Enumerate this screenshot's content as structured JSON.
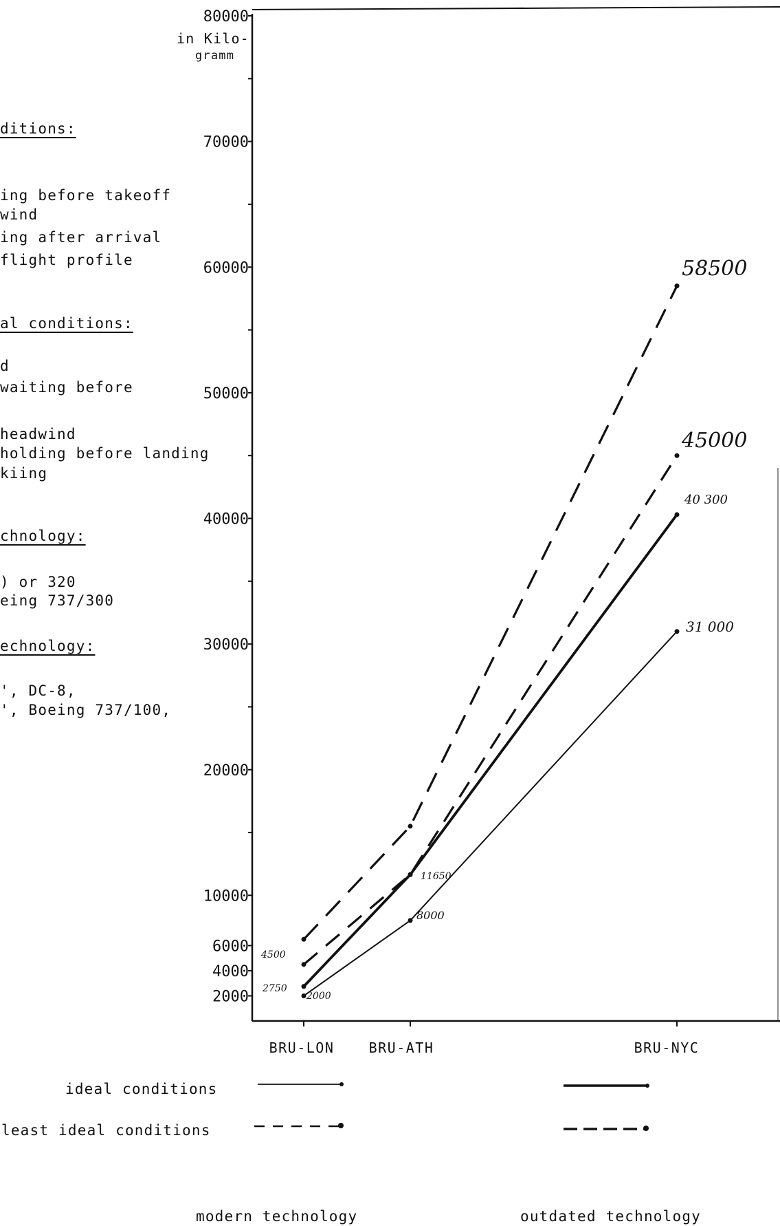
{
  "unit_label": [
    "in Kilo-",
    "gramm"
  ],
  "left_text": [
    {
      "text": "ditions:",
      "underline": true
    },
    {
      "text": "ing before takeoff",
      "underline": false
    },
    {
      "text": "wind",
      "underline": false
    },
    {
      "text": "ing after arrival",
      "underline": false
    },
    {
      "text": " flight profile",
      "underline": false
    },
    {
      "text": "al conditions:",
      "underline": true
    },
    {
      "text": "d",
      "underline": false
    },
    {
      "text": " waiting before",
      "underline": false
    },
    {
      "text": "headwind",
      "underline": false
    },
    {
      "text": " holding before landing",
      "underline": false
    },
    {
      "text": "kiing",
      "underline": false
    },
    {
      "text": "chnology:",
      "underline": true
    },
    {
      "text": ") or 320",
      "underline": false
    },
    {
      "text": "eing 737/300",
      "underline": false
    },
    {
      "text": "echnology:",
      "underline": true
    },
    {
      "text": "', DC-8,",
      "underline": false
    },
    {
      "text": "', Boeing 737/100,",
      "underline": false
    }
  ],
  "legend": {
    "ideal_label": "ideal conditions",
    "least_label": "least ideal conditions",
    "modern_label": "modern technology",
    "outdated_label": "outdated technology"
  },
  "chart_data": {
    "type": "line",
    "categories": [
      "BRU-LON",
      "BRU-ATH",
      "BRU-NYC"
    ],
    "y_tick_labels": [
      "80000",
      "70000",
      "60000",
      "50000",
      "40000",
      "30000",
      "20000",
      "10000",
      "6000",
      "4000",
      "2000"
    ],
    "y_ticks": [
      80000,
      70000,
      60000,
      50000,
      40000,
      30000,
      20000,
      10000,
      6000,
      4000,
      2000
    ],
    "ylim": [
      0,
      80000
    ],
    "ylabel": "in Kilo- gramm",
    "grid": false,
    "series": [
      {
        "values": [
          2000,
          8000,
          31000
        ],
        "style": "thin-solid",
        "point_labels": [
          "2000",
          "8000",
          "31 000"
        ]
      },
      {
        "values": [
          2750,
          11650,
          40300
        ],
        "style": "thick-solid",
        "point_labels": [
          "2750",
          "11650",
          "40 300"
        ]
      },
      {
        "values": [
          4500,
          11650,
          45000
        ],
        "style": "medium-dash",
        "point_labels": [
          "4500",
          "",
          "45000"
        ]
      },
      {
        "values": [
          6500,
          15500,
          58500
        ],
        "style": "long-dash",
        "point_labels": [
          "",
          "",
          "58500"
        ]
      }
    ]
  }
}
